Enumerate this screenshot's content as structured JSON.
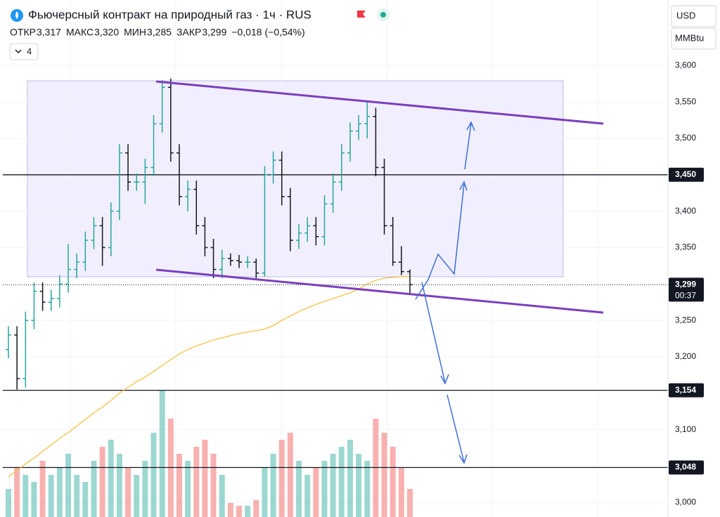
{
  "header": {
    "title": "Фьючерсный контракт на природный газ · 1ч · RUS",
    "ohlc": [
      {
        "label": "ОТКР",
        "value": "3,317"
      },
      {
        "label": "МАКС",
        "value": "3,320"
      },
      {
        "label": "МИН",
        "value": "3,285"
      },
      {
        "label": "ЗАКР",
        "value": "3,299"
      }
    ],
    "change": "−0,018 (−0,54%)",
    "indicators": "4"
  },
  "toolbar": {
    "currency": "USD",
    "unit": "MMBtu"
  },
  "chart_data": {
    "type": "ohlc",
    "up_color": "#26a69a",
    "down_color": "#131722",
    "grid": true,
    "ylim": [
      2.98,
      3.69
    ],
    "yticks": [
      {
        "value": 3.6,
        "label": "3,600"
      },
      {
        "value": 3.55,
        "label": "3,550"
      },
      {
        "value": 3.5,
        "label": "3,500"
      },
      {
        "value": 3.4,
        "label": "3,400"
      },
      {
        "value": 3.35,
        "label": "3,350"
      },
      {
        "value": 3.25,
        "label": "3,250"
      },
      {
        "value": 3.2,
        "label": "3,200"
      },
      {
        "value": 3.1,
        "label": "3,100"
      },
      {
        "value": 3.0,
        "label": "3,000"
      }
    ],
    "open": [
      3.21,
      3.23,
      3.17,
      3.25,
      3.29,
      3.275,
      3.28,
      3.3,
      3.32,
      3.33,
      3.36,
      3.38,
      3.35,
      3.4,
      3.48,
      3.44,
      3.44,
      3.46,
      3.52,
      3.57,
      3.48,
      3.42,
      3.43,
      3.38,
      3.35,
      3.32,
      3.335,
      3.332,
      3.33,
      3.33,
      3.315,
      3.45,
      3.47,
      3.42,
      3.36,
      3.37,
      3.38,
      3.365,
      3.41,
      3.44,
      3.48,
      3.51,
      3.52,
      3.53,
      3.46,
      3.38,
      3.33,
      3.317
    ],
    "high": [
      3.242,
      3.242,
      3.262,
      3.302,
      3.302,
      3.292,
      3.312,
      3.355,
      3.342,
      3.372,
      3.392,
      3.392,
      3.412,
      3.492,
      3.492,
      3.452,
      3.472,
      3.532,
      3.58,
      3.582,
      3.492,
      3.442,
      3.442,
      3.392,
      3.362,
      3.347,
      3.342,
      3.34,
      3.338,
      3.335,
      3.462,
      3.482,
      3.482,
      3.432,
      3.382,
      3.392,
      3.392,
      3.422,
      3.452,
      3.492,
      3.522,
      3.532,
      3.55,
      3.542,
      3.472,
      3.392,
      3.352,
      3.32
    ],
    "low": [
      3.198,
      3.155,
      3.158,
      3.238,
      3.263,
      3.263,
      3.268,
      3.288,
      3.308,
      3.318,
      3.348,
      3.325,
      3.338,
      3.388,
      3.428,
      3.428,
      3.41,
      3.448,
      3.508,
      3.468,
      3.408,
      3.4,
      3.368,
      3.338,
      3.308,
      3.308,
      3.325,
      3.322,
      3.322,
      3.308,
      3.31,
      3.438,
      3.408,
      3.345,
      3.348,
      3.358,
      3.353,
      3.353,
      3.398,
      3.428,
      3.468,
      3.498,
      3.5,
      3.448,
      3.368,
      3.325,
      3.312,
      3.285
    ],
    "close": [
      3.23,
      3.17,
      3.25,
      3.29,
      3.275,
      3.28,
      3.3,
      3.32,
      3.33,
      3.36,
      3.38,
      3.35,
      3.4,
      3.48,
      3.44,
      3.44,
      3.46,
      3.52,
      3.57,
      3.48,
      3.42,
      3.43,
      3.38,
      3.35,
      3.32,
      3.335,
      3.332,
      3.33,
      3.33,
      3.315,
      3.45,
      3.47,
      3.42,
      3.36,
      3.37,
      3.38,
      3.365,
      3.41,
      3.44,
      3.48,
      3.51,
      3.52,
      3.53,
      3.46,
      3.38,
      3.33,
      3.317,
      3.299
    ],
    "volume": {
      "lim": [
        0,
        100
      ],
      "values": [
        20,
        35,
        30,
        25,
        40,
        30,
        35,
        45,
        30,
        25,
        40,
        50,
        55,
        45,
        35,
        30,
        40,
        60,
        90,
        70,
        45,
        40,
        50,
        55,
        45,
        30,
        10,
        8,
        8,
        12,
        35,
        45,
        55,
        60,
        40,
        30,
        35,
        40,
        45,
        50,
        55,
        45,
        40,
        70,
        60,
        50,
        35,
        20
      ]
    },
    "ma": {
      "color": "#f5c242",
      "values": [
        3.035,
        3.044,
        3.053,
        3.061,
        3.07,
        3.079,
        3.088,
        3.096,
        3.105,
        3.114,
        3.123,
        3.131,
        3.14,
        3.15,
        3.158,
        3.166,
        3.172,
        3.18,
        3.188,
        3.196,
        3.204,
        3.21,
        3.215,
        3.219,
        3.223,
        3.226,
        3.229,
        3.232,
        3.234,
        3.236,
        3.238,
        3.243,
        3.25,
        3.256,
        3.262,
        3.267,
        3.272,
        3.276,
        3.28,
        3.284,
        3.288,
        3.293,
        3.3,
        3.305,
        3.308,
        3.309,
        3.31,
        3.31
      ]
    },
    "levels": [
      {
        "value": 3.45,
        "label": "3,450"
      },
      {
        "value": 3.154,
        "label": "3,154"
      },
      {
        "value": 3.048,
        "label": "3,048"
      }
    ],
    "last": {
      "value": 3.299,
      "label": "3,299",
      "countdown": "00:37"
    }
  }
}
